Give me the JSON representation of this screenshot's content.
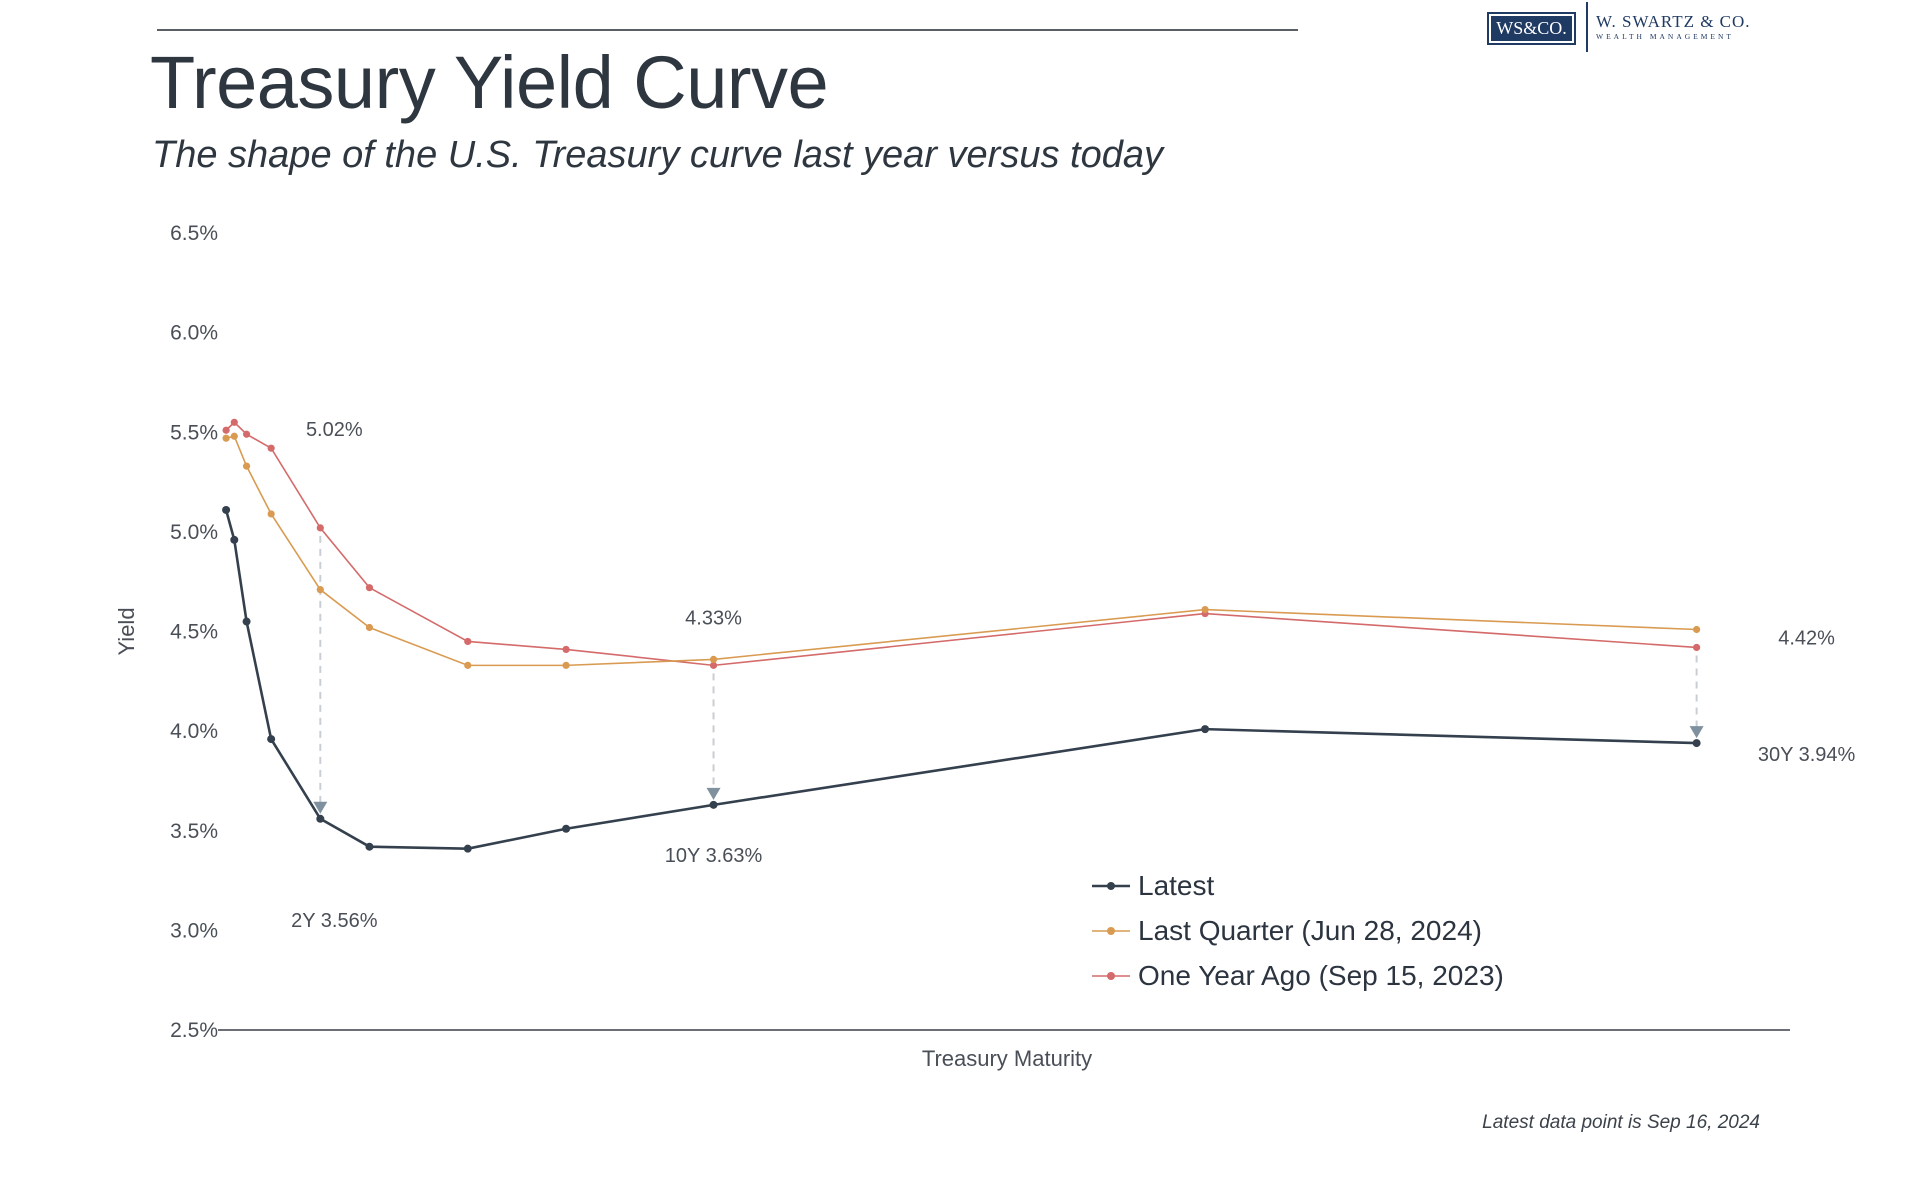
{
  "header": {
    "title": "Treasury Yield Curve",
    "subtitle": "The shape of the U.S. Treasury curve last year versus today"
  },
  "logo": {
    "mark": "WS&CO.",
    "name": "W. SWARTZ & CO.",
    "tagline": "WEALTH MANAGEMENT",
    "color": "#1f3a63"
  },
  "chart_data": {
    "type": "line",
    "xlabel": "Treasury Maturity",
    "ylabel": "Yield",
    "ylim": [
      2.5,
      6.5
    ],
    "yticks": [
      "2.5%",
      "3.0%",
      "3.5%",
      "4.0%",
      "4.5%",
      "5.0%",
      "5.5%",
      "6.0%",
      "6.5%"
    ],
    "x": [
      0.0833,
      0.25,
      0.5,
      1,
      2,
      3,
      5,
      7,
      10,
      20,
      30
    ],
    "series": [
      {
        "name": "Latest",
        "color": "#34404d",
        "values": [
          5.11,
          4.96,
          4.55,
          3.96,
          3.56,
          3.42,
          3.41,
          3.51,
          3.63,
          4.01,
          3.94
        ]
      },
      {
        "name": "Last Quarter (Jun 28, 2024)",
        "color": "#d99b52",
        "values": [
          5.47,
          5.48,
          5.33,
          5.09,
          4.71,
          4.52,
          4.33,
          4.33,
          4.36,
          4.61,
          4.51
        ]
      },
      {
        "name": "One Year Ago (Sep 15, 2023)",
        "color": "#d46a6a",
        "values": [
          5.51,
          5.55,
          5.49,
          5.42,
          5.02,
          4.72,
          4.45,
          4.41,
          4.33,
          4.59,
          4.42
        ]
      }
    ],
    "annotations": [
      {
        "x": 2,
        "upper": 5.02,
        "lower": 3.56,
        "upper_label": "5.02%",
        "lower_label": "2Y 3.56%"
      },
      {
        "x": 10,
        "upper": 4.33,
        "lower": 3.63,
        "upper_label": "4.33%",
        "lower_label": "10Y 3.63%"
      },
      {
        "x": 30,
        "upper": 4.42,
        "lower": 3.94,
        "upper_label": "4.42%",
        "lower_label": "30Y 3.94%"
      }
    ],
    "legend_position": "bottom-right",
    "grid": false
  },
  "footnote": "Latest data point is Sep 16, 2024"
}
